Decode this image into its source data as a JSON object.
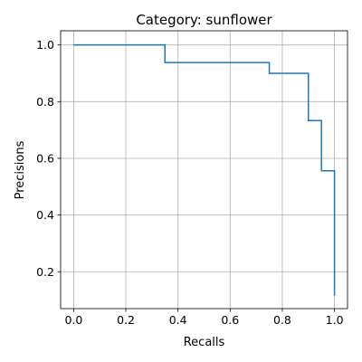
{
  "chart_data": {
    "type": "line",
    "step": "post",
    "title": "Category: sunflower",
    "xlabel": "Recalls",
    "ylabel": "Precisions",
    "xlim": [
      -0.05,
      1.05
    ],
    "ylim": [
      0.07,
      1.05
    ],
    "xticks": [
      0.0,
      0.2,
      0.4,
      0.6,
      0.8,
      1.0
    ],
    "xtick_labels": [
      "0.0",
      "0.2",
      "0.4",
      "0.6",
      "0.8",
      "1.0"
    ],
    "yticks": [
      0.2,
      0.4,
      0.6,
      0.8,
      1.0
    ],
    "ytick_labels": [
      "0.2",
      "0.4",
      "0.6",
      "0.8",
      "1.0"
    ],
    "grid": true,
    "series": [
      {
        "color": "#1f77b4",
        "x": [
          0.0,
          0.35,
          0.35,
          0.75,
          0.75,
          0.9,
          0.9,
          0.95,
          0.95,
          1.0,
          1.0
        ],
        "y": [
          1.0,
          1.0,
          0.938,
          0.938,
          0.9,
          0.9,
          0.733,
          0.733,
          0.556,
          0.556,
          0.115
        ]
      }
    ]
  }
}
